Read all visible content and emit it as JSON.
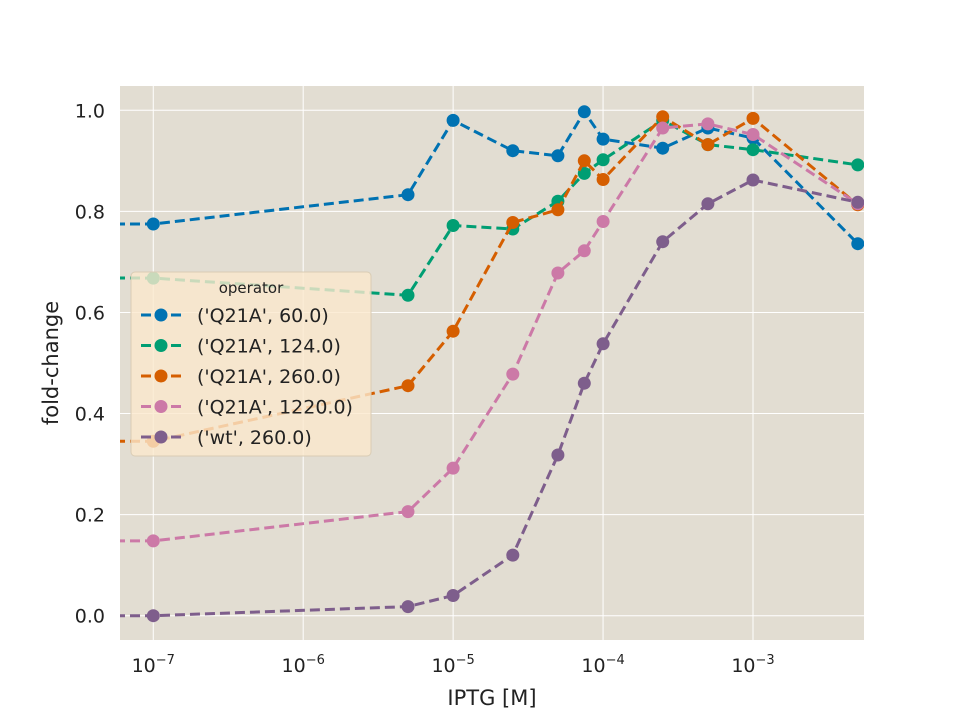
{
  "chart_data": {
    "type": "line",
    "xlabel": "IPTG [M]",
    "ylabel": "fold-change",
    "xscale": "log",
    "xlim": [
      6e-08,
      0.0055
    ],
    "ylim": [
      -0.048,
      1.048
    ],
    "x_ticks": [
      {
        "value": 1e-07,
        "label": "10",
        "exp": "−7"
      },
      {
        "value": 1e-06,
        "label": "10",
        "exp": "−6"
      },
      {
        "value": 1e-05,
        "label": "10",
        "exp": "−5"
      },
      {
        "value": 0.0001,
        "label": "10",
        "exp": "−4"
      },
      {
        "value": 0.001,
        "label": "10",
        "exp": "−3"
      }
    ],
    "y_ticks": [
      {
        "value": 0.0,
        "label": "0.0"
      },
      {
        "value": 0.2,
        "label": "0.2"
      },
      {
        "value": 0.4,
        "label": "0.4"
      },
      {
        "value": 0.6,
        "label": "0.6"
      },
      {
        "value": 0.8,
        "label": "0.8"
      },
      {
        "value": 1.0,
        "label": "1.0"
      }
    ],
    "grid": true,
    "legend": {
      "title": "operator",
      "placement": "center-left"
    },
    "x": [
      0,
      1e-07,
      5e-06,
      1e-05,
      2.5e-05,
      5e-05,
      7.5e-05,
      0.0001,
      0.00025,
      0.0005,
      0.001,
      0.005
    ],
    "series": [
      {
        "name": "('Q21A', 60.0)",
        "color": "#0072b2",
        "values": [
          0.775,
          0.775,
          0.833,
          0.98,
          0.92,
          0.91,
          0.997,
          0.943,
          0.925,
          0.965,
          0.945,
          0.736
        ]
      },
      {
        "name": "('Q21A', 124.0)",
        "color": "#009e73",
        "values": [
          0.67,
          0.668,
          0.634,
          0.772,
          0.765,
          0.82,
          0.875,
          0.902,
          0.98,
          0.932,
          0.922,
          0.892
        ]
      },
      {
        "name": "('Q21A', 260.0)",
        "color": "#d55e00",
        "values": [
          0.345,
          0.345,
          0.455,
          0.563,
          0.778,
          0.803,
          0.9,
          0.863,
          0.987,
          0.932,
          0.984,
          0.813
        ]
      },
      {
        "name": "('Q21A', 1220.0)",
        "color": "#cc79a7",
        "values": [
          0.148,
          0.148,
          0.206,
          0.292,
          0.478,
          0.678,
          0.722,
          0.78,
          0.965,
          0.973,
          0.952,
          0.815
        ]
      },
      {
        "name": "('wt', 260.0)",
        "color": "#7e5e8c",
        "values": [
          0.0,
          0.0,
          0.018,
          0.04,
          0.12,
          0.318,
          0.46,
          0.538,
          0.74,
          0.815,
          0.862,
          0.818
        ]
      }
    ],
    "colors": {
      "plot_background": "#e2ddd2",
      "grid": "#ffffff",
      "legend_background": "#fbe9cd"
    }
  }
}
